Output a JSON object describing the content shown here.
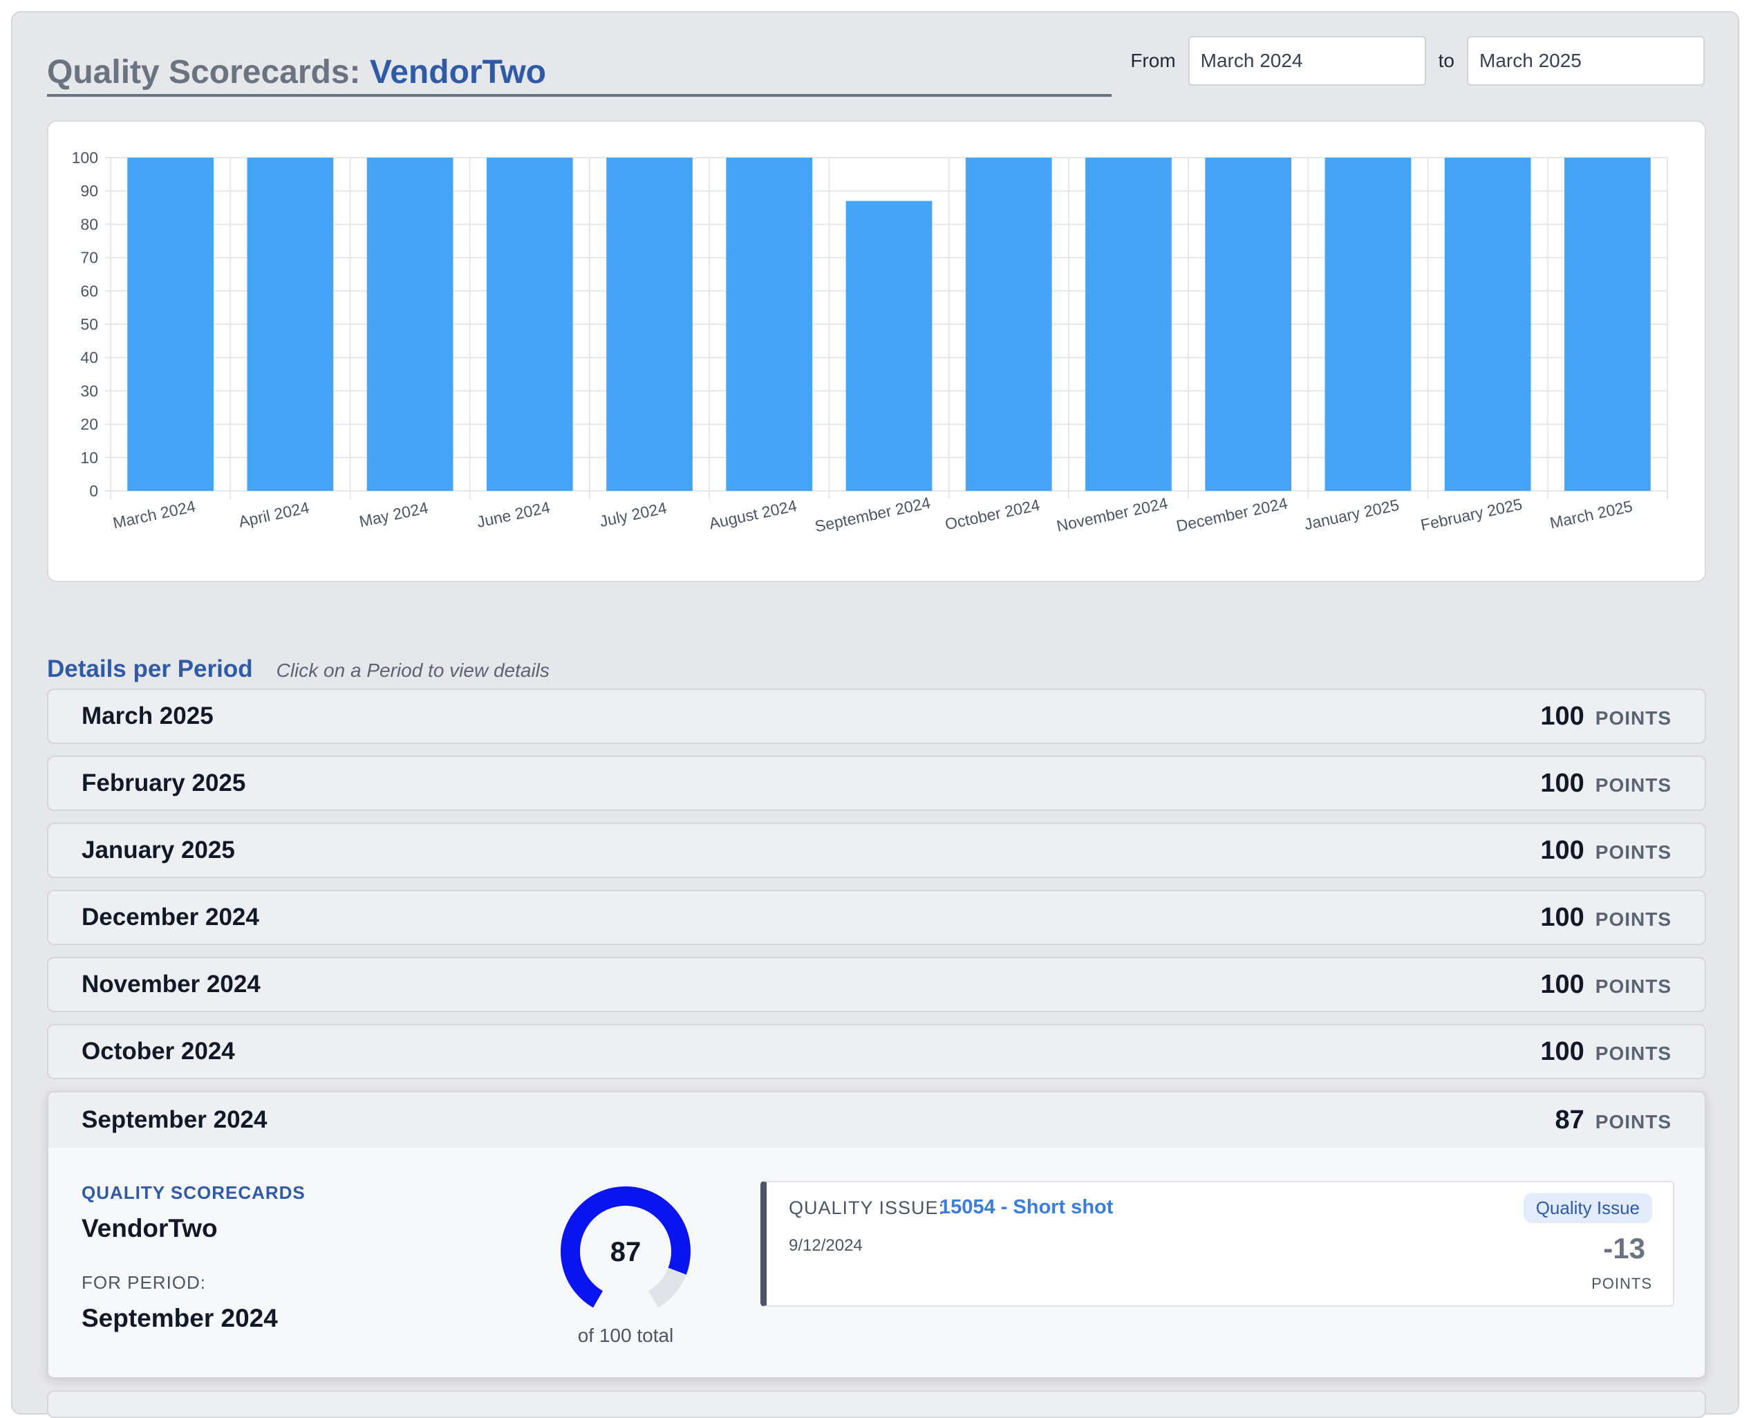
{
  "header": {
    "title_prefix": "Quality Scorecards: ",
    "vendor": "VendorTwo",
    "from_label": "From",
    "from_value": "March 2024",
    "to_label": "to",
    "to_value": "March 2025"
  },
  "chart_data": {
    "type": "bar",
    "categories": [
      "March 2024",
      "April 2024",
      "May 2024",
      "June 2024",
      "July 2024",
      "August 2024",
      "September 2024",
      "October 2024",
      "November 2024",
      "December 2024",
      "January 2025",
      "February 2025",
      "March 2025"
    ],
    "values": [
      100,
      100,
      100,
      100,
      100,
      100,
      87,
      100,
      100,
      100,
      100,
      100,
      100
    ],
    "ylim": [
      0,
      100
    ],
    "yticks": [
      0,
      10,
      20,
      30,
      40,
      50,
      60,
      70,
      80,
      90,
      100
    ],
    "grid": true,
    "bar_color": "#45a4f5"
  },
  "details": {
    "title": "Details per Period",
    "hint": "Click on a Period to view details",
    "unit_label": "POINTS",
    "periods": [
      {
        "name": "March 2025",
        "points": "100"
      },
      {
        "name": "February 2025",
        "points": "100"
      },
      {
        "name": "January 2025",
        "points": "100"
      },
      {
        "name": "December 2024",
        "points": "100"
      },
      {
        "name": "November 2024",
        "points": "100"
      },
      {
        "name": "October 2024",
        "points": "100"
      }
    ],
    "expanded": {
      "name": "September 2024",
      "points": "87",
      "qs_label": "QUALITY SCORECARDS",
      "vendor": "VendorTwo",
      "for_period_label": "FOR PERIOD:",
      "for_period_value": "September 2024",
      "gauge_value": "87",
      "gauge_total": "of 100 total",
      "gauge_fraction": 0.87,
      "gauge_color": "#0a14f0",
      "issue": {
        "label": "QUALITY ISSUE:",
        "link": "15054 - Short shot",
        "date": "9/12/2024",
        "badge": "Quality Issue",
        "amount": "-13",
        "unit": "POINTS"
      }
    }
  }
}
